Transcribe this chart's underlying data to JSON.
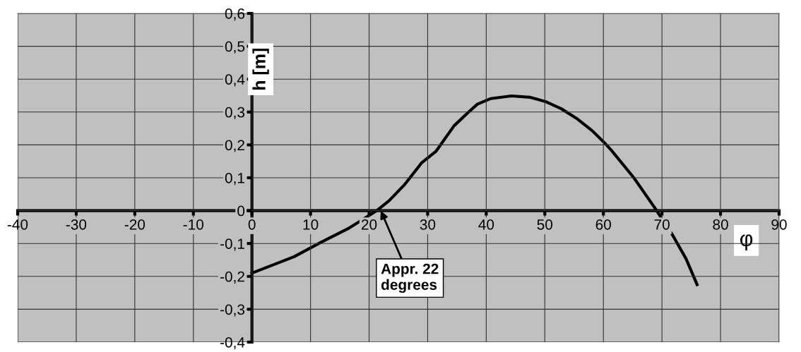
{
  "chart_data": {
    "type": "line",
    "xlabel": "φ",
    "ylabel": "h [m]",
    "x": [
      0,
      7.2,
      11.7,
      16.4,
      19.8,
      21.3,
      23.4,
      26.1,
      29.0,
      31.4,
      34.5,
      37.0,
      38.5,
      40.8,
      44.3,
      47.4,
      50.1,
      52.8,
      55.4,
      58.1,
      60.1,
      61.4,
      65.2,
      68.8,
      71.9,
      74.1,
      76.0
    ],
    "series": [
      {
        "color": "#000000",
        "values": [
          -0.19,
          -0.14,
          -0.097,
          -0.055,
          -0.017,
          0,
          0.03,
          0.08,
          0.146,
          0.18,
          0.258,
          0.3,
          0.324,
          0.341,
          0.349,
          0.345,
          0.332,
          0.31,
          0.281,
          0.243,
          0.208,
          0.183,
          0.1,
          0.008,
          -0.077,
          -0.146,
          -0.225
        ]
      }
    ],
    "annotations": [
      {
        "text": "Appr. 22\ndegrees",
        "x": 22,
        "y": 0
      }
    ],
    "xlim": [
      -40,
      90
    ],
    "xticks": [
      -40,
      -30,
      -20,
      -10,
      0,
      10,
      20,
      30,
      40,
      50,
      60,
      70,
      80,
      90
    ],
    "ylim": [
      -0.4,
      0.6
    ],
    "yticks": [
      {
        "value": -0.4,
        "label": "-0,4"
      },
      {
        "value": -0.3,
        "label": "-0,3"
      },
      {
        "value": -0.2,
        "label": "-0,2"
      },
      {
        "value": -0.1,
        "label": "-0,1"
      },
      0,
      {
        "value": 0.1,
        "label": "0,1"
      },
      {
        "value": 0.2,
        "label": "0,2"
      },
      {
        "value": 0.3,
        "label": "0,3"
      },
      {
        "value": 0.4,
        "label": "0,4"
      },
      {
        "value": 0.5,
        "label": "0,5"
      },
      {
        "value": 0.6,
        "label": "0,6"
      }
    ],
    "grid": true,
    "marker": "none",
    "line_style": "solid",
    "legend": false
  }
}
